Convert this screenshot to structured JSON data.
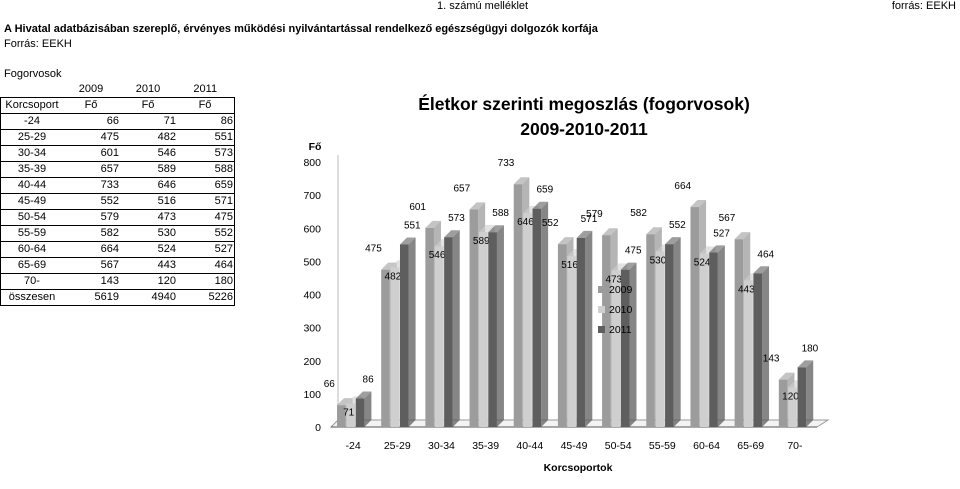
{
  "header": {
    "annex": "1. számú melléklet",
    "source_right": "forrás: EEKH",
    "title": "A Hivatal adatbázisában szereplő, érvényes működési nyilvántartással rendelkező egészségügyi dolgozók korfája",
    "source": "Forrás: EEKH"
  },
  "table": {
    "section_label": "Fogorvosok",
    "years": [
      "2009",
      "2010",
      "2011"
    ],
    "group_header": "Korcsoport",
    "unit_header": "Fő",
    "rows": [
      {
        "label": "-24",
        "values": [
          "66",
          "71",
          "86"
        ]
      },
      {
        "label": "25-29",
        "values": [
          "475",
          "482",
          "551"
        ]
      },
      {
        "label": "30-34",
        "values": [
          "601",
          "546",
          "573"
        ]
      },
      {
        "label": "35-39",
        "values": [
          "657",
          "589",
          "588"
        ]
      },
      {
        "label": "40-44",
        "values": [
          "733",
          "646",
          "659"
        ]
      },
      {
        "label": "45-49",
        "values": [
          "552",
          "516",
          "571"
        ]
      },
      {
        "label": "50-54",
        "values": [
          "579",
          "473",
          "475"
        ]
      },
      {
        "label": "55-59",
        "values": [
          "582",
          "530",
          "552"
        ]
      },
      {
        "label": "60-64",
        "values": [
          "664",
          "524",
          "527"
        ]
      },
      {
        "label": "65-69",
        "values": [
          "567",
          "443",
          "464"
        ]
      },
      {
        "label": "70-",
        "values": [
          "143",
          "120",
          "180"
        ]
      },
      {
        "label": "összesen",
        "values": [
          "5619",
          "4940",
          "5226"
        ]
      }
    ]
  },
  "chart_data": {
    "type": "bar",
    "title": "Életkor szerinti megoszlás (fogorvosok)",
    "subtitle": "2009-2010-2011",
    "ylabel": "Fő",
    "xlabel": "Korcsoportok",
    "ylim": [
      0,
      800
    ],
    "yticks": [
      0,
      100,
      200,
      300,
      400,
      500,
      600,
      700,
      800
    ],
    "categories": [
      "-24",
      "25-29",
      "30-34",
      "35-39",
      "40-44",
      "45-49",
      "50-54",
      "55-59",
      "60-64",
      "65-69",
      "70-"
    ],
    "series": [
      {
        "name": "2009",
        "values": [
          66,
          475,
          601,
          657,
          733,
          552,
          579,
          582,
          664,
          567,
          143
        ]
      },
      {
        "name": "2010",
        "values": [
          71,
          482,
          546,
          589,
          646,
          516,
          473,
          530,
          524,
          443,
          120
        ]
      },
      {
        "name": "2011",
        "values": [
          86,
          551,
          573,
          588,
          659,
          571,
          475,
          552,
          527,
          464,
          180
        ]
      }
    ],
    "legend_position": "right",
    "grid": false,
    "style": "3d-clustered-column",
    "colors": {
      "2009": "#9c9c9c",
      "2010": "#cfcfcf",
      "2011": "#5e5e5e"
    }
  }
}
